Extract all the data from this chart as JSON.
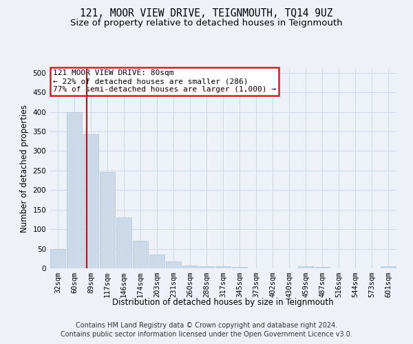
{
  "title": "121, MOOR VIEW DRIVE, TEIGNMOUTH, TQ14 9UZ",
  "subtitle": "Size of property relative to detached houses in Teignmouth",
  "xlabel": "Distribution of detached houses by size in Teignmouth",
  "ylabel": "Number of detached properties",
  "footer_line1": "Contains HM Land Registry data © Crown copyright and database right 2024.",
  "footer_line2": "Contains public sector information licensed under the Open Government Licence v3.0.",
  "bin_labels": [
    "32sqm",
    "60sqm",
    "89sqm",
    "117sqm",
    "146sqm",
    "174sqm",
    "203sqm",
    "231sqm",
    "260sqm",
    "288sqm",
    "317sqm",
    "345sqm",
    "373sqm",
    "402sqm",
    "430sqm",
    "459sqm",
    "487sqm",
    "516sqm",
    "544sqm",
    "573sqm",
    "601sqm"
  ],
  "bar_heights": [
    50,
    400,
    343,
    246,
    130,
    70,
    36,
    18,
    7,
    6,
    5,
    3,
    0,
    0,
    0,
    5,
    3,
    0,
    0,
    0,
    5
  ],
  "bar_color": "#ccd9e8",
  "bar_edge_color": "#b0c4d4",
  "grid_color": "#d0d8e8",
  "background_color": "#eef2f8",
  "vline_x": 1.75,
  "vline_color": "#bb1111",
  "annotation_text": "121 MOOR VIEW DRIVE: 80sqm\n← 22% of detached houses are smaller (286)\n77% of semi-detached houses are larger (1,000) →",
  "annotation_box_color": "#ffffff",
  "annotation_box_edge_color": "#cc2222",
  "ylim": [
    0,
    510
  ],
  "yticks": [
    0,
    50,
    100,
    150,
    200,
    250,
    300,
    350,
    400,
    450,
    500
  ],
  "title_fontsize": 10.5,
  "subtitle_fontsize": 9.5,
  "axis_label_fontsize": 8.5,
  "tick_fontsize": 7.5,
  "annotation_fontsize": 8.0,
  "footer_fontsize": 7.0
}
